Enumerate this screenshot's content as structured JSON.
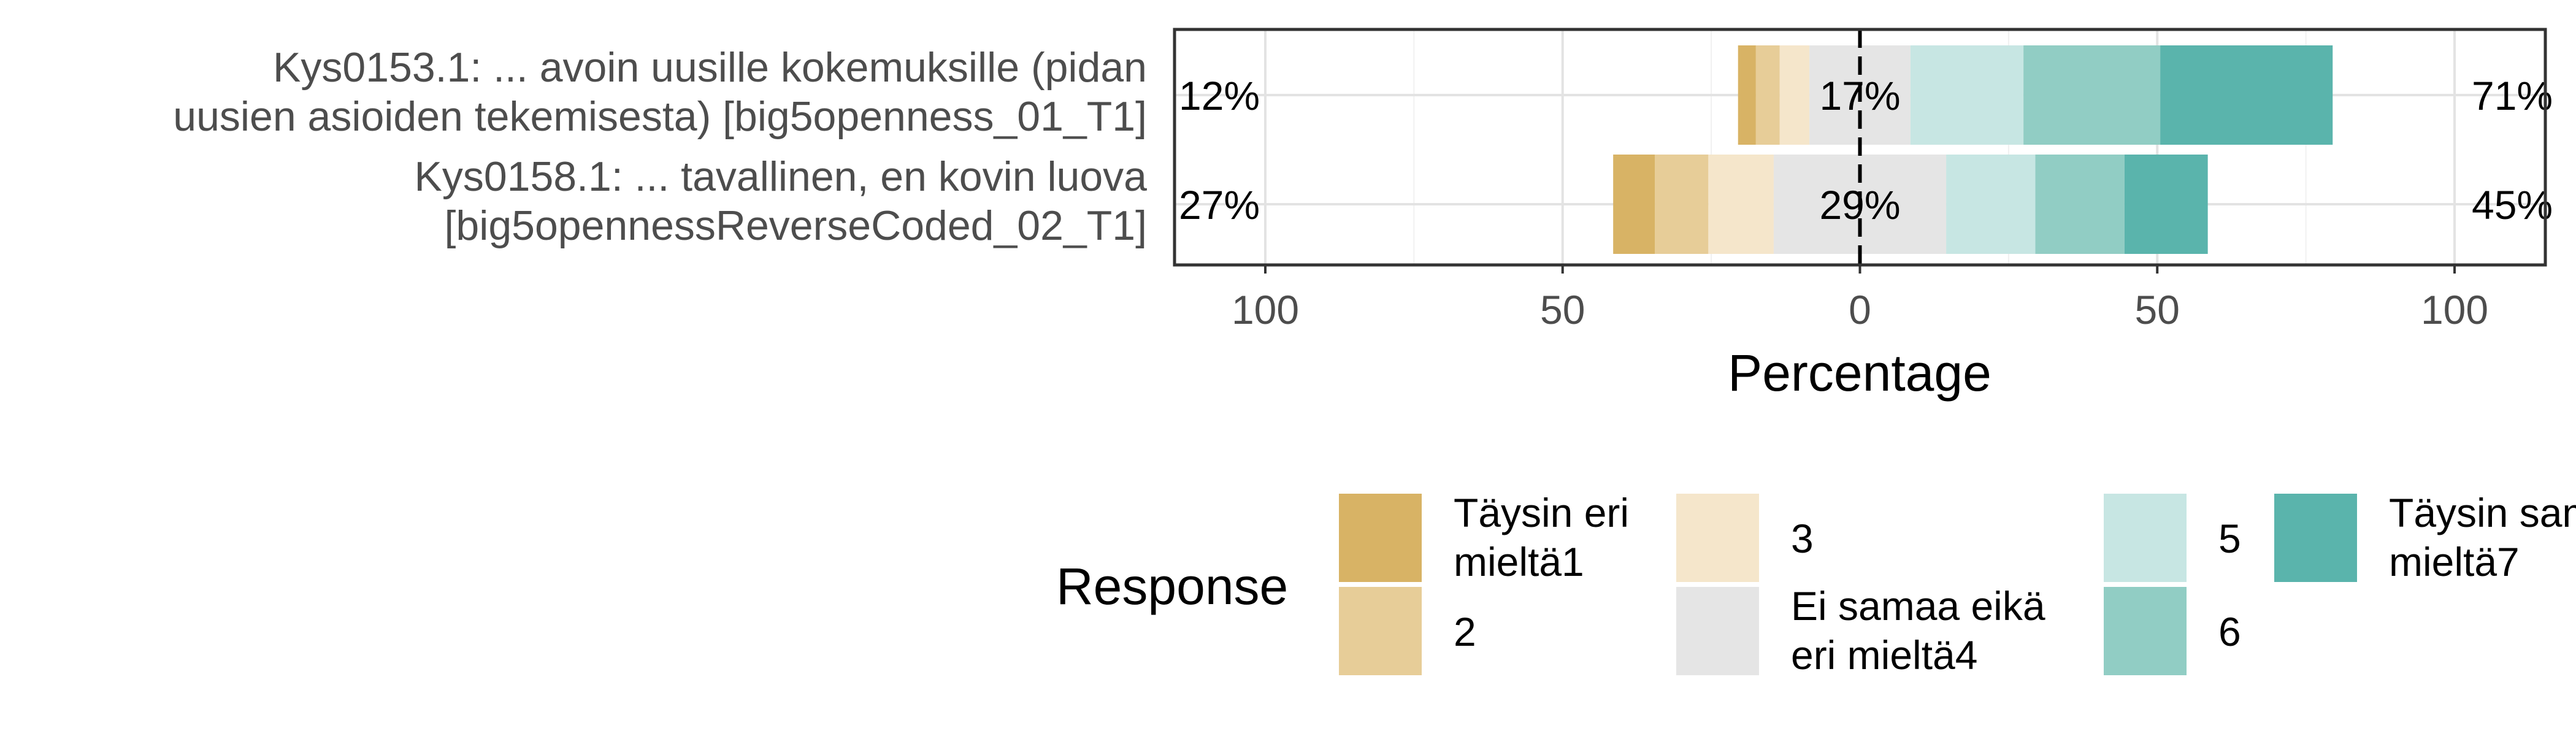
{
  "chart_data": {
    "type": "bar",
    "subtype": "diverging-stacked-likert",
    "orientation": "horizontal",
    "xlabel": "Percentage",
    "x_ticks": [
      "100",
      "50",
      "0",
      "50",
      "100"
    ],
    "x_tick_values": [
      -100,
      -50,
      0,
      50,
      100
    ],
    "xlim": [
      -100,
      100
    ],
    "grid": true,
    "legend": {
      "title": "Response",
      "placement": "bottom",
      "entries": [
        {
          "label_lines": [
            "Täysin eri",
            "mieltä1"
          ],
          "color": "#D8B365"
        },
        {
          "label_lines": [
            "2"
          ],
          "color": "#E7CD98"
        },
        {
          "label_lines": [
            "3"
          ],
          "color": "#F5E6CB"
        },
        {
          "label_lines": [
            "Ei samaa eikä",
            "eri mieltä4"
          ],
          "color": "#E5E5E5"
        },
        {
          "label_lines": [
            "5"
          ],
          "color": "#C7E6E3"
        },
        {
          "label_lines": [
            "6"
          ],
          "color": "#91CDC4"
        },
        {
          "label_lines": [
            "Täysin samaa",
            "mieltä7"
          ],
          "color": "#5AB4AC"
        }
      ]
    },
    "categories": [
      {
        "label_lines": [
          "Kys0153.1: ... avoin uusille kokemuksille (pidan",
          "uusien asioiden tekemisesta) [big5openness_01_T1]"
        ],
        "values": [
          3,
          4,
          5,
          17,
          19,
          23,
          29
        ],
        "low_label": "12%",
        "neutral_label": "17%",
        "high_label": "71%"
      },
      {
        "label_lines": [
          "Kys0158.1: ... tavallinen, en kovin luova",
          "[big5opennessReverseCoded_02_T1]"
        ],
        "values": [
          7,
          9,
          11,
          29,
          15,
          15,
          14
        ],
        "low_label": "27%",
        "neutral_label": "29%",
        "high_label": "45%"
      }
    ]
  }
}
